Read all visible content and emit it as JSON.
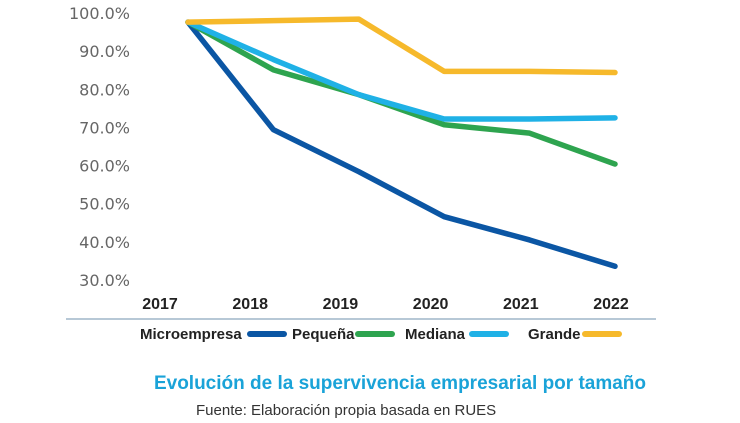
{
  "chart_data": {
    "type": "line",
    "title": "Evolución de la supervivencia empresarial por tamaño",
    "source": "Fuente: Elaboración propia basada en RUES",
    "categories": [
      "2017",
      "2018",
      "2019",
      "2020",
      "2021",
      "2022"
    ],
    "yticks": [
      "30.0%",
      "40.0%",
      "50.0%",
      "60.0%",
      "70.0%",
      "80.0%",
      "90.0%",
      "100.0%"
    ],
    "ylim": [
      30,
      100
    ],
    "grid": false,
    "legend_position": "bottom",
    "series": [
      {
        "name": "Microempresa",
        "color": "#0b56a4",
        "values": [
          97.6,
          69.4,
          58.4,
          46.6,
          40.5,
          33.6
        ]
      },
      {
        "name": "Pequeña",
        "color": "#2ea44f",
        "values": [
          97.6,
          85.1,
          78.6,
          70.7,
          68.5,
          60.4
        ]
      },
      {
        "name": "Mediana",
        "color": "#1fb1e6",
        "values": [
          97.6,
          87.8,
          78.6,
          72.2,
          72.2,
          72.5
        ]
      },
      {
        "name": "Grande",
        "color": "#f6b92b",
        "values": [
          97.6,
          98.0,
          98.4,
          84.7,
          84.7,
          84.4
        ]
      }
    ]
  }
}
